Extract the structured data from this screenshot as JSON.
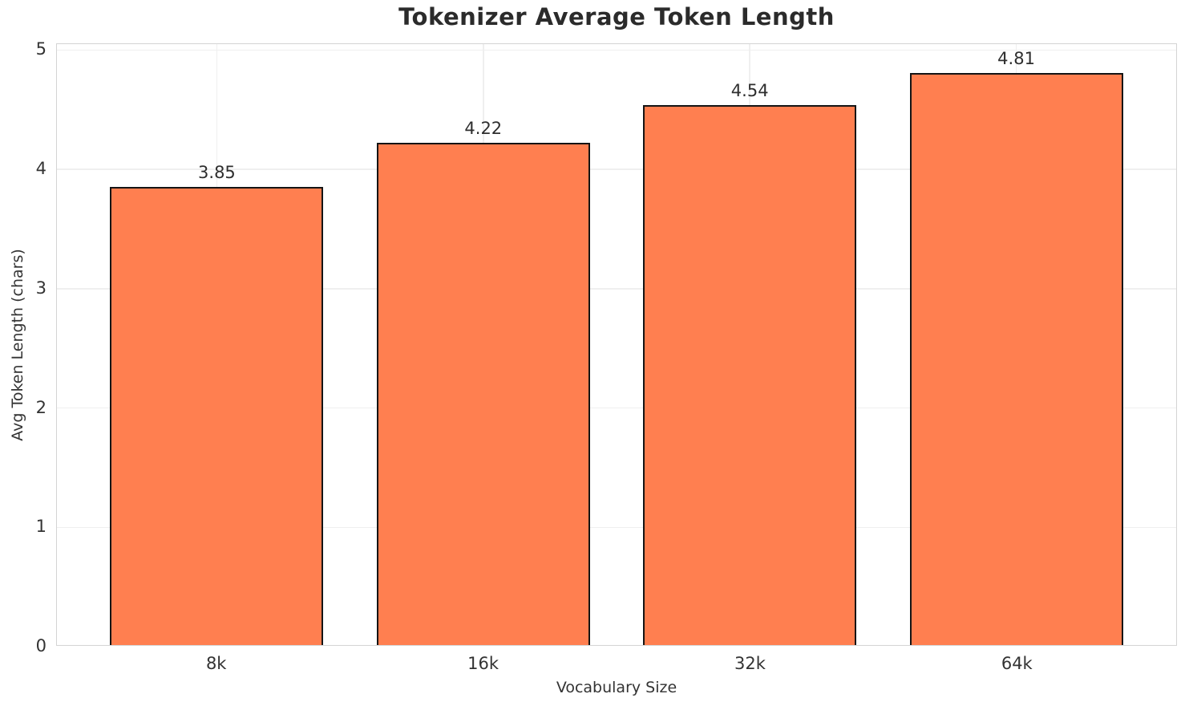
{
  "chart_data": {
    "type": "bar",
    "title": "Tokenizer Average Token Length",
    "xlabel": "Vocabulary Size",
    "ylabel": "Avg Token Length (chars)",
    "categories": [
      "8k",
      "16k",
      "32k",
      "64k"
    ],
    "values": [
      3.85,
      4.22,
      4.54,
      4.81
    ],
    "value_labels": [
      "3.85",
      "4.22",
      "4.54",
      "4.81"
    ],
    "yticks": [
      0,
      1,
      2,
      3,
      4,
      5
    ],
    "ylim": [
      0,
      5.05
    ],
    "grid": "both-axes-light-gray",
    "legend_position": "none",
    "bar_color": "#FF7F50",
    "bar_edge_color": "#141414",
    "gridline_color": "#efefef",
    "spine_color": "#d4d4d4",
    "title_color": "#2b2b2b",
    "tick_label_color": "#333333"
  }
}
